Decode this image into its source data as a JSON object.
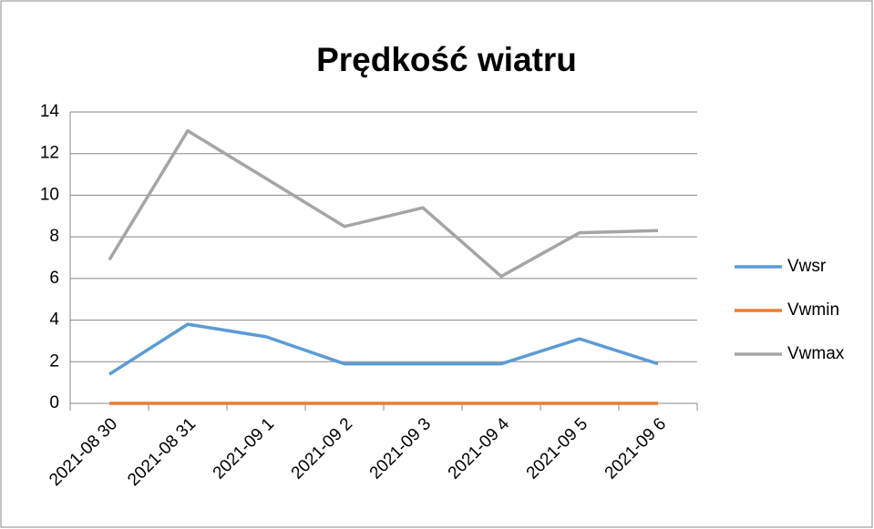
{
  "chart_data": {
    "type": "line",
    "title": "Prędkość wiatru",
    "categories": [
      "2021-08 30",
      "2021-08 31",
      "2021-09 1",
      "2021-09 2",
      "2021-09 3",
      "2021-09 4",
      "2021-09 5",
      "2021-09 6"
    ],
    "series": [
      {
        "name": "Vwsr",
        "color": "#5b9bd5",
        "values": [
          1.4,
          3.8,
          3.2,
          1.9,
          1.9,
          1.9,
          3.1,
          1.9
        ]
      },
      {
        "name": "Vwmin",
        "color": "#ed7d31",
        "values": [
          0,
          0,
          0,
          0,
          0,
          0,
          0,
          0
        ]
      },
      {
        "name": "Vwmax",
        "color": "#a5a5a5",
        "values": [
          6.9,
          13.1,
          10.8,
          8.5,
          9.4,
          6.1,
          8.2,
          8.3
        ]
      }
    ],
    "ylim": [
      0,
      14
    ],
    "yticks": [
      0,
      2,
      4,
      6,
      8,
      10,
      12,
      14
    ],
    "grid": true,
    "legend": "right"
  }
}
